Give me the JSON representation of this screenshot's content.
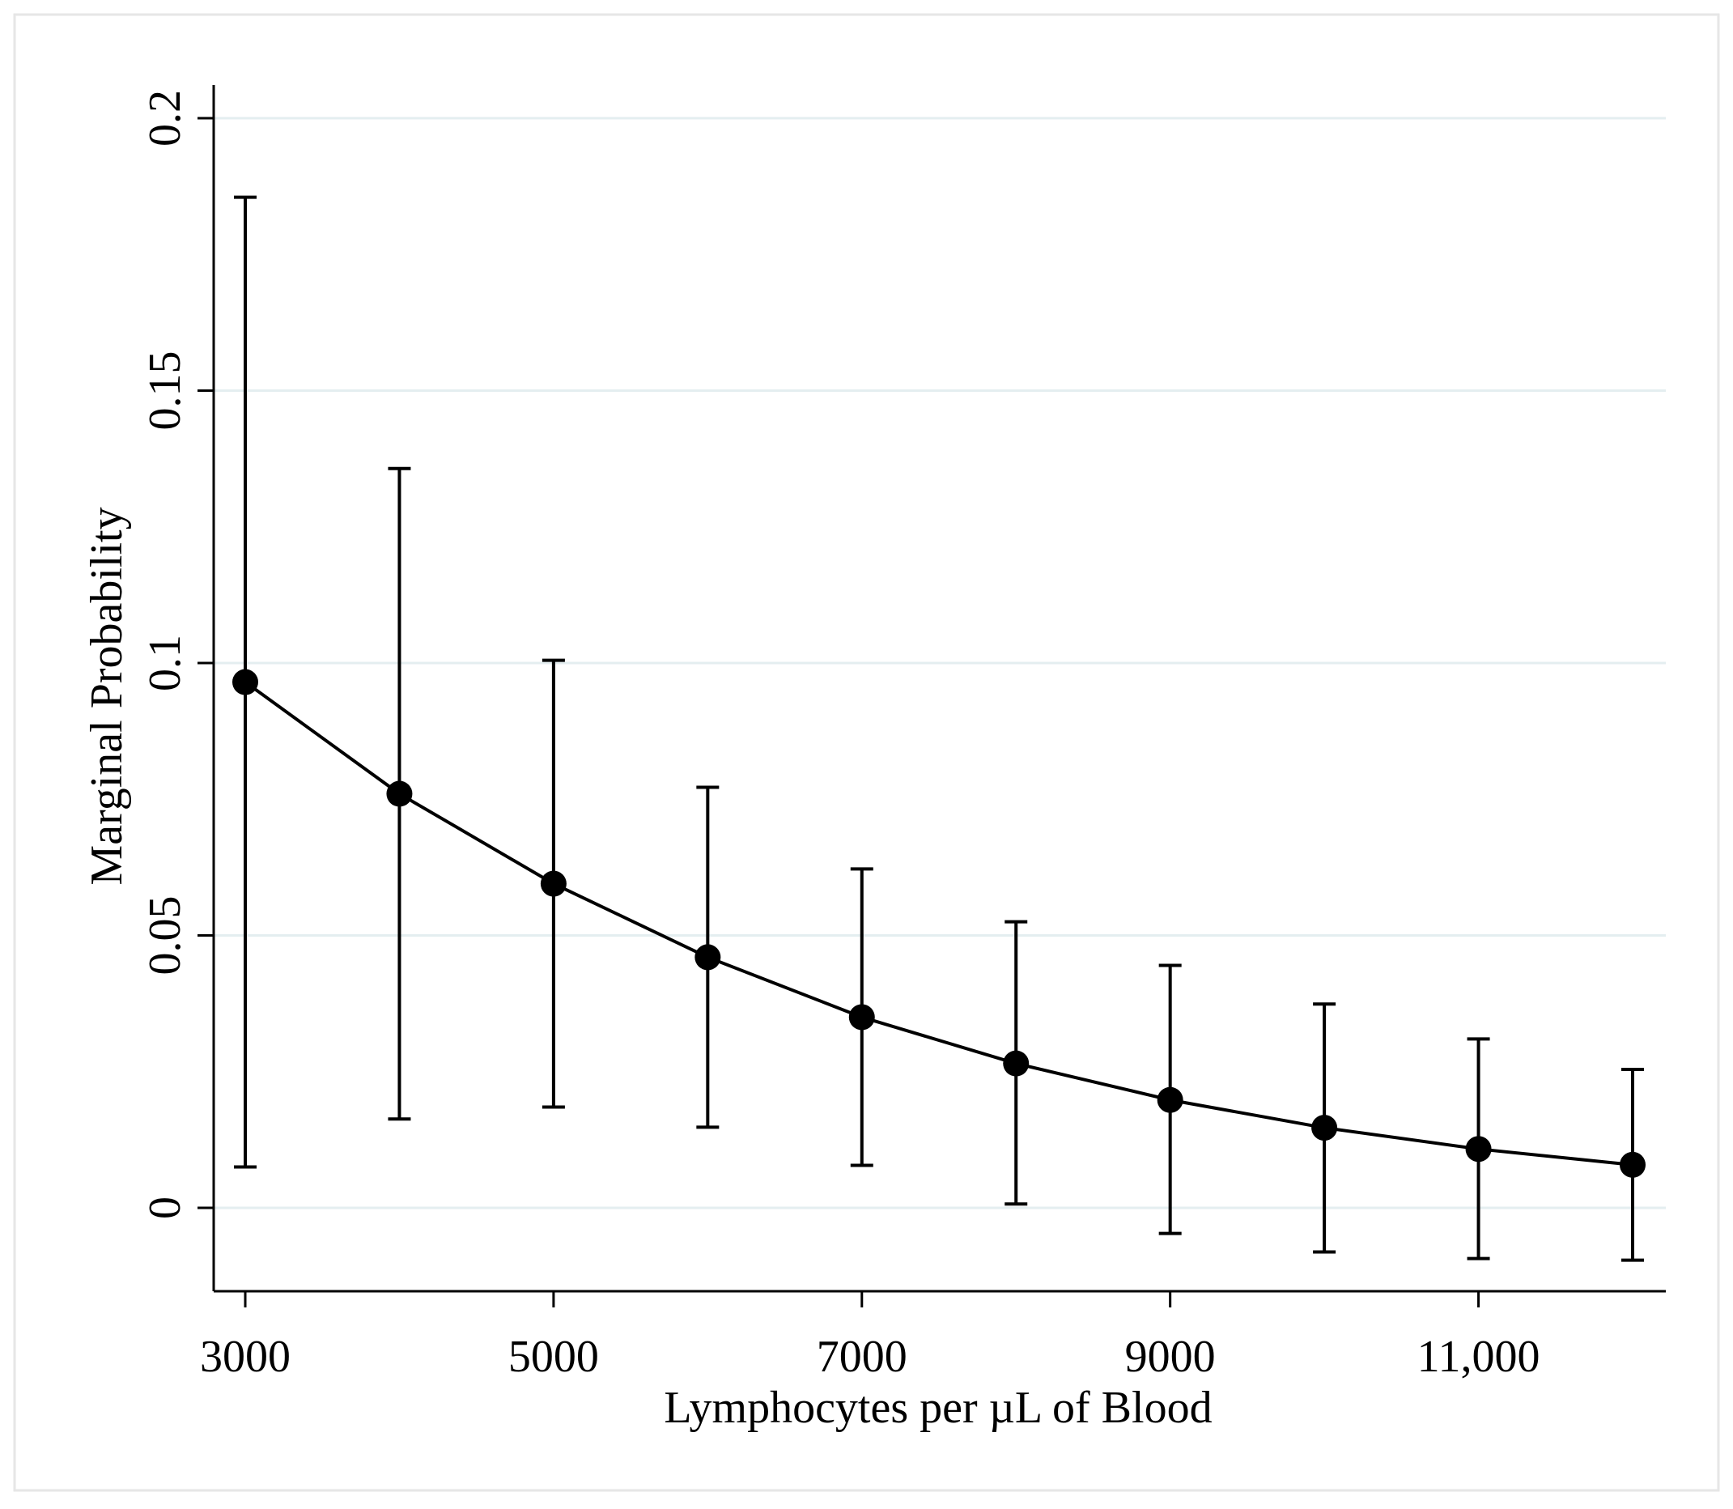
{
  "colors": {
    "background": "#ffffff",
    "frame": "#e6e6e6",
    "gridline": "#e4eef0",
    "axis": "#000000",
    "series": "#000000"
  },
  "chart_data": {
    "type": "line",
    "title": "",
    "xlabel": "Lymphocytes per µL of Blood",
    "ylabel": "Marginal Probability",
    "xlim": [
      2900,
      12100
    ],
    "ylim": [
      -0.015,
      0.206
    ],
    "grid": true,
    "legend": "none",
    "x_ticks": [
      {
        "value": 3000,
        "label": "3000"
      },
      {
        "value": 5000,
        "label": "5000"
      },
      {
        "value": 7000,
        "label": "7000"
      },
      {
        "value": 9000,
        "label": "9000"
      },
      {
        "value": 11000,
        "label": "11,000"
      }
    ],
    "y_ticks": [
      {
        "value": 0,
        "label": "0"
      },
      {
        "value": 0.05,
        "label": "0.05"
      },
      {
        "value": 0.1,
        "label": "0.1"
      },
      {
        "value": 0.15,
        "label": "0.15"
      },
      {
        "value": 0.2,
        "label": "0.2"
      }
    ],
    "series": [
      {
        "x": [
          3000,
          4000,
          5000,
          6000,
          7000,
          8000,
          9000,
          10000,
          11000,
          12000
        ],
        "y": [
          0.0965,
          0.076,
          0.0595,
          0.046,
          0.035,
          0.0265,
          0.0198,
          0.0147,
          0.0108,
          0.0079
        ],
        "lower": [
          0.0075,
          0.0163,
          0.0185,
          0.0148,
          0.0078,
          0.0007,
          -0.0047,
          -0.0081,
          -0.0093,
          -0.0096
        ],
        "upper": [
          0.1855,
          0.1357,
          0.1005,
          0.0772,
          0.0622,
          0.0525,
          0.0445,
          0.0374,
          0.031,
          0.0254
        ]
      }
    ]
  }
}
